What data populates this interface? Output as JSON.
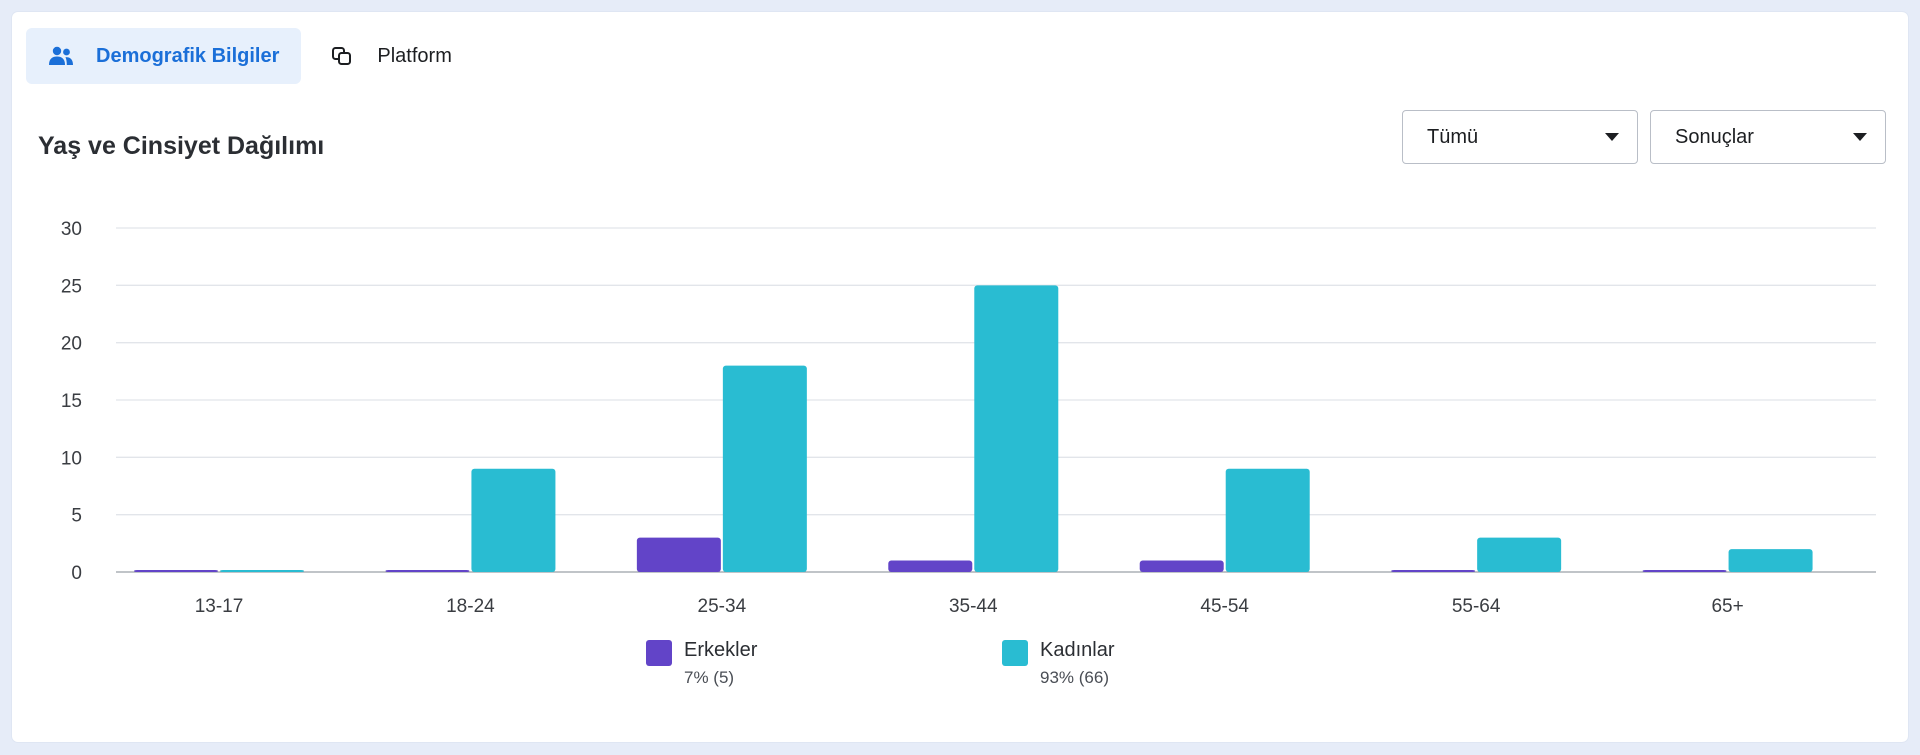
{
  "tabs": [
    {
      "label": "Demografik Bilgiler",
      "icon": "people-icon",
      "active": true
    },
    {
      "label": "Platform",
      "icon": "platform-icon",
      "active": false
    }
  ],
  "section": {
    "title": "Yaş ve Cinsiyet Dağılımı"
  },
  "filters": {
    "audience": {
      "selected": "Tümü"
    },
    "metric": {
      "selected": "Sonuçlar"
    }
  },
  "legend": [
    {
      "name": "Erkekler",
      "sub": "7% (5)",
      "color": "#6244c8"
    },
    {
      "name": "Kadınlar",
      "sub": "93% (66)",
      "color": "#29bcd2"
    }
  ],
  "chart_data": {
    "type": "bar",
    "categories": [
      "13-17",
      "18-24",
      "25-34",
      "35-44",
      "45-54",
      "55-64",
      "65+"
    ],
    "series": [
      {
        "name": "Erkekler",
        "color": "#6244c8",
        "values": [
          0,
          0,
          3,
          1,
          1,
          0,
          0
        ]
      },
      {
        "name": "Kadınlar",
        "color": "#29bcd2",
        "values": [
          0,
          9,
          18,
          25,
          9,
          3,
          2
        ]
      }
    ],
    "ylim": [
      0,
      30
    ],
    "yticks": [
      0,
      5,
      10,
      15,
      20,
      25,
      30
    ],
    "grid": true,
    "legend_position": "bottom"
  }
}
